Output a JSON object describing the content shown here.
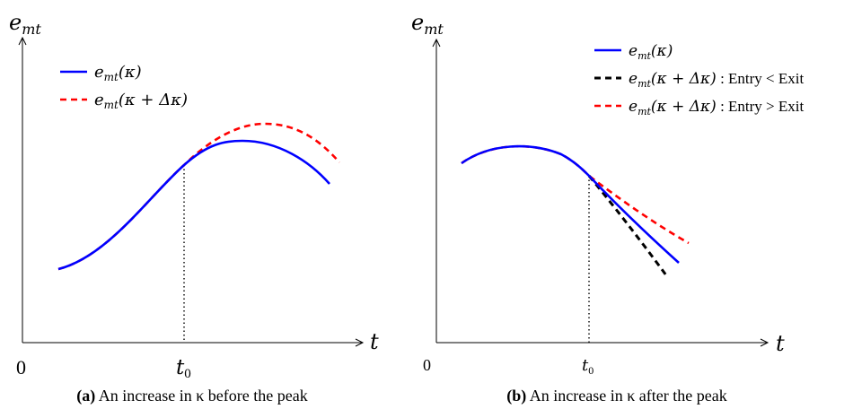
{
  "panels": [
    {
      "id": "a",
      "y_axis_label": "e",
      "y_axis_label_sub": "mt",
      "x_axis_label": "t",
      "origin_label": "0",
      "t0_label": "t",
      "t0_label_sub": "0",
      "legend": [
        {
          "prefix": "e",
          "sub": "mt",
          "arg": "(κ)",
          "suffix": "",
          "color": "#0000ff",
          "style": "solid"
        },
        {
          "prefix": "e",
          "sub": "mt",
          "arg": "(κ + Δκ)",
          "suffix": "",
          "color": "#ff0000",
          "style": "dashed"
        }
      ],
      "caption_tag": "(a)",
      "caption_text": "An increase in κ before the peak"
    },
    {
      "id": "b",
      "y_axis_label": "e",
      "y_axis_label_sub": "mt",
      "x_axis_label": "t",
      "origin_label": "0",
      "t0_label": "t",
      "t0_label_sub": "0",
      "legend": [
        {
          "prefix": "e",
          "sub": "mt",
          "arg": "(κ)",
          "suffix": "",
          "color": "#0000ff",
          "style": "solid"
        },
        {
          "prefix": "e",
          "sub": "mt",
          "arg": "(κ + Δκ)",
          "suffix": " : Entry < Exit",
          "color": "#000000",
          "style": "dashed"
        },
        {
          "prefix": "e",
          "sub": "mt",
          "arg": "(κ + Δκ)",
          "suffix": " : Entry > Exit",
          "color": "#ff0000",
          "style": "dashed"
        }
      ],
      "caption_tag": "(b)",
      "caption_text": "An increase in κ after the peak"
    }
  ]
}
